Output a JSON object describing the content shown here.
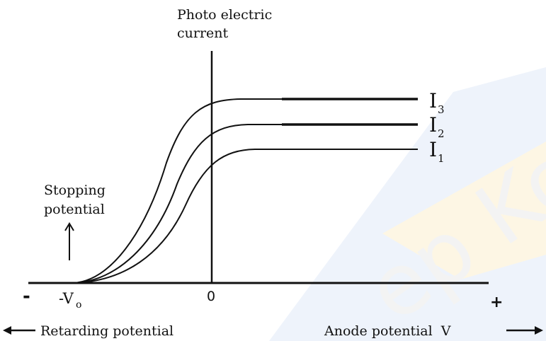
{
  "diagram": {
    "y_axis_label_line1": "Photo electric",
    "y_axis_label_line2": "current",
    "origin_label": "0",
    "minus_sign": "-",
    "plus_sign": "+",
    "stopping_voltage_main": "-V",
    "stopping_voltage_sub": "o",
    "stopping_label_line1": "Stopping",
    "stopping_label_line2": "potential",
    "retarding_label": "Retarding potential",
    "anode_label": "Anode potential  V",
    "curves": [
      {
        "main": "I",
        "sub": "3"
      },
      {
        "main": "I",
        "sub": "2"
      },
      {
        "main": "I",
        "sub": "1"
      }
    ],
    "watermark_text": "ep Ko",
    "colors": {
      "ink": "#111111",
      "watermark_blue": "#eef3fb",
      "watermark_yellow": "#fdf6e4",
      "watermark_letters": "#f3f3f3"
    }
  }
}
